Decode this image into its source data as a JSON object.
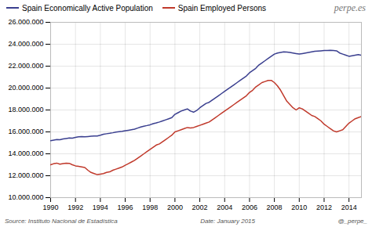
{
  "chart_data": {
    "type": "line",
    "annotations": [
      "perpe.es",
      "Source: Instituto Nacional de Estadística",
      "Date: January 2015",
      "@_perpe_"
    ],
    "x": [
      1990,
      1990.25,
      1990.5,
      1990.75,
      1991,
      1991.25,
      1991.5,
      1991.75,
      1992,
      1992.25,
      1992.5,
      1992.75,
      1993,
      1993.25,
      1993.5,
      1993.75,
      1994,
      1994.25,
      1994.5,
      1994.75,
      1995,
      1995.25,
      1995.5,
      1995.75,
      1996,
      1996.25,
      1996.5,
      1996.75,
      1997,
      1997.25,
      1997.5,
      1997.75,
      1998,
      1998.25,
      1998.5,
      1998.75,
      1999,
      1999.25,
      1999.5,
      1999.75,
      2000,
      2000.25,
      2000.5,
      2000.75,
      2001,
      2001.25,
      2001.5,
      2001.75,
      2002,
      2002.25,
      2002.5,
      2002.75,
      2003,
      2003.25,
      2003.5,
      2003.75,
      2004,
      2004.25,
      2004.5,
      2004.75,
      2005,
      2005.25,
      2005.5,
      2005.75,
      2006,
      2006.25,
      2006.5,
      2006.75,
      2007,
      2007.25,
      2007.5,
      2007.75,
      2008,
      2008.25,
      2008.5,
      2008.75,
      2009,
      2009.25,
      2009.5,
      2009.75,
      2010,
      2010.25,
      2010.5,
      2010.75,
      2011,
      2011.25,
      2011.5,
      2011.75,
      2012,
      2012.25,
      2012.5,
      2012.75,
      2013,
      2013.25,
      2013.5,
      2013.75,
      2014,
      2014.25,
      2014.5,
      2014.75,
      2015
    ],
    "series": [
      {
        "name": "Spain Economically Active Population",
        "color": "#3a3f8f",
        "values": [
          15200000,
          15250000,
          15300000,
          15280000,
          15350000,
          15400000,
          15450000,
          15430000,
          15500000,
          15550000,
          15570000,
          15560000,
          15580000,
          15600000,
          15620000,
          15630000,
          15700000,
          15780000,
          15830000,
          15870000,
          15920000,
          15980000,
          16020000,
          16050000,
          16100000,
          16150000,
          16200000,
          16250000,
          16350000,
          16450000,
          16520000,
          16580000,
          16650000,
          16750000,
          16820000,
          16900000,
          17000000,
          17100000,
          17200000,
          17300000,
          17600000,
          17750000,
          17900000,
          18000000,
          18100000,
          17900000,
          17800000,
          17950000,
          18200000,
          18400000,
          18600000,
          18700000,
          18900000,
          19100000,
          19300000,
          19500000,
          19700000,
          19900000,
          20100000,
          20300000,
          20500000,
          20700000,
          20900000,
          21100000,
          21400000,
          21600000,
          21800000,
          22100000,
          22300000,
          22500000,
          22700000,
          22900000,
          23100000,
          23200000,
          23250000,
          23300000,
          23280000,
          23250000,
          23200000,
          23150000,
          23100000,
          23150000,
          23200000,
          23250000,
          23300000,
          23350000,
          23380000,
          23400000,
          23420000,
          23430000,
          23440000,
          23420000,
          23400000,
          23200000,
          23100000,
          23000000,
          22900000,
          22950000,
          23000000,
          23050000,
          23000000
        ]
      },
      {
        "name": "Spain Employed Persons",
        "color": "#c0392b",
        "values": [
          13000000,
          13100000,
          13150000,
          13050000,
          13100000,
          13150000,
          13130000,
          13000000,
          12900000,
          12850000,
          12800000,
          12750000,
          12500000,
          12300000,
          12200000,
          12100000,
          12150000,
          12200000,
          12300000,
          12350000,
          12500000,
          12600000,
          12700000,
          12800000,
          12950000,
          13100000,
          13250000,
          13400000,
          13600000,
          13800000,
          14000000,
          14200000,
          14400000,
          14600000,
          14800000,
          14900000,
          15100000,
          15300000,
          15500000,
          15700000,
          16000000,
          16100000,
          16200000,
          16300000,
          16400000,
          16350000,
          16400000,
          16500000,
          16600000,
          16700000,
          16800000,
          16900000,
          17100000,
          17300000,
          17500000,
          17700000,
          17900000,
          18100000,
          18300000,
          18500000,
          18700000,
          18900000,
          19100000,
          19300000,
          19600000,
          19800000,
          20100000,
          20300000,
          20500000,
          20600000,
          20700000,
          20700000,
          20500000,
          20200000,
          19800000,
          19300000,
          18800000,
          18500000,
          18200000,
          18000000,
          18200000,
          18100000,
          17900000,
          17700000,
          17500000,
          17400000,
          17200000,
          17000000,
          16700000,
          16500000,
          16300000,
          16100000,
          16000000,
          16100000,
          16200000,
          16500000,
          16800000,
          17000000,
          17200000,
          17300000,
          17400000
        ]
      }
    ],
    "xlim": [
      1990,
      2015
    ],
    "xticks": [
      1990,
      1992,
      1994,
      1996,
      1998,
      2000,
      2002,
      2004,
      2006,
      2008,
      2010,
      2012,
      2014
    ],
    "ylim": [
      10000000,
      26000000
    ],
    "yticks": [
      {
        "value": 10000000,
        "label": "10.000.000"
      },
      {
        "value": 12000000,
        "label": "12.000.000"
      },
      {
        "value": 14000000,
        "label": "14.000.000"
      },
      {
        "value": 16000000,
        "label": "16.000.000"
      },
      {
        "value": 18000000,
        "label": "18.000.000"
      },
      {
        "value": 20000000,
        "label": "20.000.000"
      },
      {
        "value": 22000000,
        "label": "22.000.000"
      },
      {
        "value": 24000000,
        "label": "24.000.000"
      },
      {
        "value": 26000000,
        "label": "26.000.000"
      }
    ],
    "grid": true,
    "legend": "top"
  }
}
